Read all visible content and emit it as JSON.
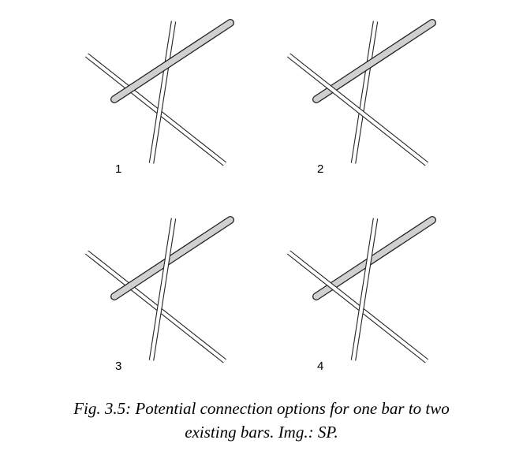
{
  "figure": {
    "panels": [
      {
        "label": "1",
        "connection": "new bar crosses above both existing bars"
      },
      {
        "label": "2",
        "connection": "new bar passes between the existing bars near the left crossing"
      },
      {
        "label": "3",
        "connection": "new bar passes between the existing bars near the right crossing"
      },
      {
        "label": "4",
        "connection": "new bar crosses below both existing bars"
      }
    ],
    "colors": {
      "new_bar_fill": "#d0d0d0",
      "bar_outline": "#222222",
      "existing_bar_fill": "#ffffff"
    },
    "caption": {
      "line1": "Fig. 3.5: Potential connection options for one bar to two",
      "line2": "existing bars. Img.: SP."
    }
  }
}
